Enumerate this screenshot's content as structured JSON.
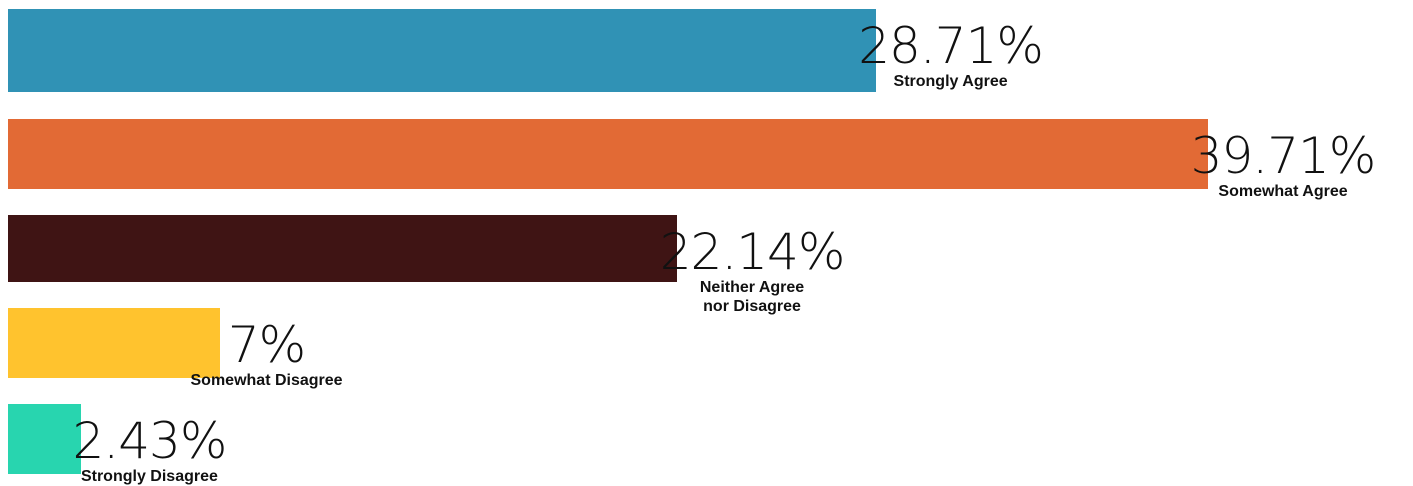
{
  "chart_data": {
    "type": "bar",
    "orientation": "horizontal",
    "categories": [
      "Strongly Agree",
      "Somewhat Agree",
      "Neither Agree\nnor Disagree",
      "Somewhat Disagree",
      "Strongly Disagree"
    ],
    "values": [
      28.71,
      39.71,
      22.14,
      7,
      2.43
    ],
    "value_labels": [
      "28.71%",
      "39.71%",
      "22.14%",
      "7%",
      "2.43%"
    ],
    "colors": [
      "#3092B5",
      "#E26A35",
      "#3F1414",
      "#FFC32E",
      "#28D5AF"
    ],
    "title": "",
    "xlabel": "",
    "ylabel": "",
    "grid": false,
    "legend": "none"
  }
}
